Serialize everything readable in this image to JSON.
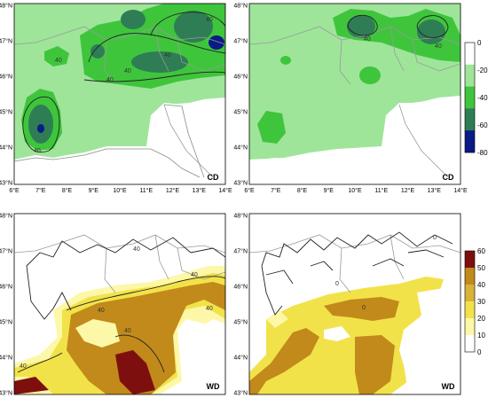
{
  "panels": [
    {
      "id": "cd-left",
      "tag": "CD"
    },
    {
      "id": "cd-right",
      "tag": "CD"
    },
    {
      "id": "wd-left",
      "tag": "WD"
    },
    {
      "id": "wd-right",
      "tag": "WD"
    }
  ],
  "lat_labels": [
    "48°N",
    "47°N",
    "46°N",
    "45°N",
    "44°N",
    "43°N"
  ],
  "lon_labels": [
    "6°E",
    "7°E",
    "8°E",
    "9°E",
    "10°E",
    "11°E",
    "12°E",
    "13°E",
    "14°E"
  ],
  "contour_labels": {
    "cd_left": [
      "40",
      "40",
      "40",
      "40",
      "40",
      "40"
    ],
    "cd_right": [
      "40",
      "40"
    ],
    "wd_left": [
      "40",
      "40",
      "40",
      "40",
      "40",
      "40"
    ],
    "wd_right": [
      "0",
      "0",
      "0"
    ]
  },
  "colorbar_cd": {
    "ticks": [
      "0",
      "-20",
      "-40",
      "-60",
      "-80"
    ],
    "colors": [
      "#ffffff",
      "#9ee59a",
      "#3fc53c",
      "#2e7d55",
      "#0a1a86"
    ]
  },
  "colorbar_wd": {
    "ticks": [
      "60",
      "50",
      "40",
      "30",
      "20",
      "10",
      "0"
    ],
    "colors": [
      "#7d0f0f",
      "#c18a1a",
      "#d8b23a",
      "#f2e24a",
      "#fdf7a8",
      "#ffffff"
    ]
  }
}
